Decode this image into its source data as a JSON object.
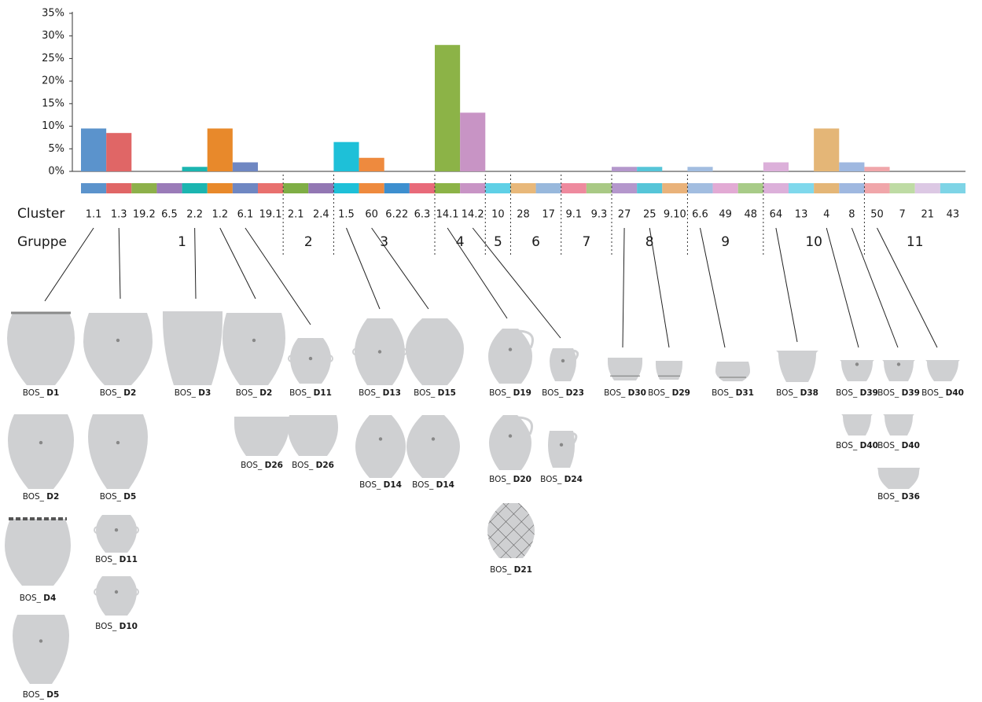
{
  "chart_data": {
    "type": "bar",
    "categories": [
      "1.1",
      "1.3",
      "19.2",
      "6.5",
      "2.2",
      "1.2",
      "6.1",
      "19.1",
      "2.1",
      "2.4",
      "1.5",
      "60",
      "6.22",
      "6.3",
      "14.1",
      "14.2",
      "10",
      "28",
      "17",
      "9.1",
      "9.3",
      "27",
      "25",
      "9.10",
      "6.6",
      "49",
      "48",
      "64",
      "13",
      "4",
      "8",
      "50",
      "7",
      "21",
      "43"
    ],
    "values": [
      9.5,
      8.5,
      0,
      0,
      1,
      9.5,
      2,
      0,
      0,
      0,
      6.5,
      3,
      0,
      0,
      28,
      13,
      0,
      0,
      0,
      0,
      0,
      1,
      1,
      0,
      1,
      0,
      0,
      2,
      0,
      9.5,
      2,
      1,
      0,
      0,
      0
    ],
    "colors": [
      "#5b93cc",
      "#e06666",
      "#8db04a",
      "#9a7bb8",
      "#1bb5b0",
      "#e8892b",
      "#6f87c2",
      "#e8706e",
      "#7fae45",
      "#9277b3",
      "#1ec0d8",
      "#ee8a3e",
      "#3d8fcf",
      "#e86a7a",
      "#8cb347",
      "#c894c5",
      "#5fd0e6",
      "#e8b87a",
      "#98b8dc",
      "#ee8a9e",
      "#a9c985",
      "#b497cc",
      "#56c5d8",
      "#e9b27a",
      "#a2bde0",
      "#e2aad4",
      "#a8cb88",
      "#dcb0da",
      "#7fd8ec",
      "#e4b677",
      "#9fb8e0",
      "#f0a6aa",
      "#bedba4",
      "#dcc8e4",
      "#7ed4e6"
    ],
    "ylim": [
      0,
      35
    ],
    "yticks": [
      {
        "value": 0,
        "label": "0%"
      },
      {
        "value": 5,
        "label": "5%"
      },
      {
        "value": 10,
        "label": "10%"
      },
      {
        "value": 15,
        "label": "15%"
      },
      {
        "value": 20,
        "label": "20%"
      },
      {
        "value": 25,
        "label": "25%"
      },
      {
        "value": 30,
        "label": "30%"
      },
      {
        "value": 35,
        "label": "35%"
      }
    ],
    "cluster_label": "Cluster",
    "group_label": "Gruppe",
    "groups": [
      {
        "label": "1",
        "clusters": [
          "1.1",
          "1.3",
          "19.2",
          "6.5",
          "2.2",
          "1.2",
          "6.1",
          "19.1"
        ]
      },
      {
        "label": "2",
        "clusters": [
          "2.1",
          "2.4"
        ]
      },
      {
        "label": "3",
        "clusters": [
          "1.5",
          "60",
          "6.22",
          "6.3"
        ]
      },
      {
        "label": "4",
        "clusters": [
          "14.1",
          "14.2"
        ]
      },
      {
        "label": "5",
        "clusters": [
          "10"
        ]
      },
      {
        "label": "6",
        "clusters": [
          "28",
          "17"
        ]
      },
      {
        "label": "7",
        "clusters": [
          "9.1",
          "9.3"
        ]
      },
      {
        "label": "8",
        "clusters": [
          "27",
          "25",
          "9.10"
        ]
      },
      {
        "label": "9",
        "clusters": [
          "6.6",
          "49",
          "48"
        ]
      },
      {
        "label": "10",
        "clusters": [
          "64",
          "13",
          "4",
          "8"
        ]
      },
      {
        "label": "11",
        "clusters": [
          "50",
          "7",
          "21",
          "43"
        ]
      }
    ]
  },
  "specimens": [
    {
      "prefix": "BOS_ ",
      "code": "D1"
    },
    {
      "prefix": "BOS_ ",
      "code": "D2"
    },
    {
      "prefix": "BOS_ ",
      "code": "D4"
    },
    {
      "prefix": "BOS_ ",
      "code": "D5"
    },
    {
      "prefix": "BOS_ ",
      "code": "D2"
    },
    {
      "prefix": "BOS_ ",
      "code": "D5"
    },
    {
      "prefix": "BOS_ ",
      "code": "D11"
    },
    {
      "prefix": "BOS_ ",
      "code": "D10"
    },
    {
      "prefix": "BOS_ ",
      "code": "D3"
    },
    {
      "prefix": "BOS_ ",
      "code": "D2"
    },
    {
      "prefix": "BOS_ ",
      "code": "D11"
    },
    {
      "prefix": "BOS_ ",
      "code": "D26"
    },
    {
      "prefix": "BOS_ ",
      "code": "D26"
    },
    {
      "prefix": "BOS_ ",
      "code": "D13"
    },
    {
      "prefix": "BOS_ ",
      "code": "D15"
    },
    {
      "prefix": "BOS_ ",
      "code": "D14"
    },
    {
      "prefix": "BOS_ ",
      "code": "D14"
    },
    {
      "prefix": "BOS_ ",
      "code": "D19"
    },
    {
      "prefix": "BOS_ ",
      "code": "D23"
    },
    {
      "prefix": "BOS_ ",
      "code": "D20"
    },
    {
      "prefix": "BOS_ ",
      "code": "D24"
    },
    {
      "prefix": "BOS_ ",
      "code": "D21"
    },
    {
      "prefix": "BOS_ ",
      "code": "D30"
    },
    {
      "prefix": "BOS_ ",
      "code": "D29"
    },
    {
      "prefix": "BOS_ ",
      "code": "D31"
    },
    {
      "prefix": "BOS_ ",
      "code": "D38"
    },
    {
      "prefix": "BOS_ ",
      "code": "D39"
    },
    {
      "prefix": "BOS_ ",
      "code": "D39"
    },
    {
      "prefix": "BOS_ ",
      "code": "D40"
    },
    {
      "prefix": "BOS_ ",
      "code": "D40"
    },
    {
      "prefix": "BOS_ ",
      "code": "D40"
    },
    {
      "prefix": "BOS_ ",
      "code": "D36"
    }
  ]
}
